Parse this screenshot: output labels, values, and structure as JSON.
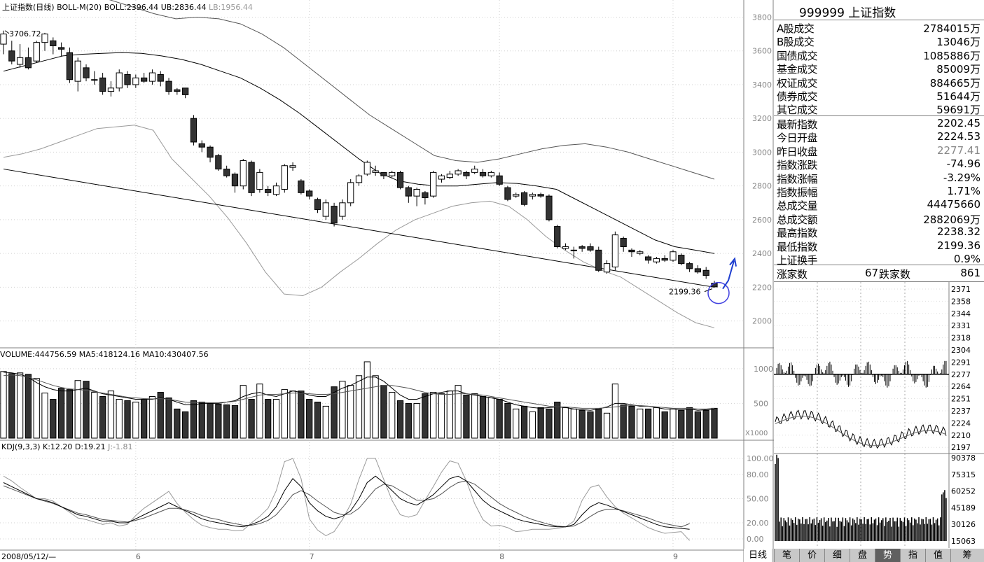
{
  "chart_data": {
    "type": "candlestick",
    "main": {
      "header": {
        "name": "上证指数(日线)",
        "boll_label": "BOLL-M(20)",
        "boll": "BOLL:2396.44",
        "ub": "UB:2836.44",
        "lb": "LB:1956.44"
      },
      "y_ticks": [
        "3800",
        "3600",
        "3400",
        "3200",
        "3000",
        "2800",
        "2600",
        "2400",
        "2200",
        "2000"
      ],
      "y_values": [
        3800,
        3600,
        3400,
        3200,
        3000,
        2800,
        2600,
        2400,
        2200,
        2000
      ],
      "ylim": [
        1870,
        3860
      ],
      "high_label": "3706.72",
      "low_label": "2199.36",
      "candles": [
        [
          3640,
          3700,
          3720,
          3580
        ],
        [
          3600,
          3540,
          3660,
          3520
        ],
        [
          3520,
          3560,
          3640,
          3500
        ],
        [
          3560,
          3500,
          3620,
          3490
        ],
        [
          3540,
          3650,
          3660,
          3530
        ],
        [
          3650,
          3700,
          3707,
          3600
        ],
        [
          3660,
          3630,
          3680,
          3580
        ],
        [
          3620,
          3610,
          3650,
          3570
        ],
        [
          3590,
          3430,
          3620,
          3410
        ],
        [
          3420,
          3540,
          3560,
          3360
        ],
        [
          3500,
          3440,
          3520,
          3420
        ],
        [
          3430,
          3430,
          3480,
          3400
        ],
        [
          3440,
          3360,
          3470,
          3340
        ],
        [
          3360,
          3380,
          3420,
          3330
        ],
        [
          3380,
          3470,
          3490,
          3360
        ],
        [
          3460,
          3400,
          3480,
          3380
        ],
        [
          3400,
          3440,
          3460,
          3380
        ],
        [
          3440,
          3420,
          3470,
          3410
        ],
        [
          3420,
          3470,
          3490,
          3400
        ],
        [
          3460,
          3420,
          3480,
          3390
        ],
        [
          3420,
          3360,
          3440,
          3340
        ],
        [
          3370,
          3360,
          3380,
          3340
        ],
        [
          3380,
          3340,
          3370,
          3320
        ],
        [
          3200,
          3060,
          3220,
          3040
        ],
        [
          3050,
          3030,
          3070,
          3000
        ],
        [
          3030,
          2970,
          3040,
          2940
        ],
        [
          2980,
          2900,
          2990,
          2890
        ],
        [
          2900,
          2860,
          2920,
          2850
        ],
        [
          2870,
          2800,
          2880,
          2760
        ],
        [
          2800,
          2950,
          2960,
          2780
        ],
        [
          2940,
          2760,
          2950,
          2740
        ],
        [
          2780,
          2880,
          2900,
          2760
        ],
        [
          2780,
          2760,
          2800,
          2740
        ],
        [
          2750,
          2800,
          2820,
          2740
        ],
        [
          2780,
          2920,
          2930,
          2760
        ],
        [
          2910,
          2920,
          2940,
          2890
        ],
        [
          2830,
          2760,
          2840,
          2750
        ],
        [
          2770,
          2740,
          2780,
          2720
        ],
        [
          2720,
          2660,
          2730,
          2640
        ],
        [
          2620,
          2700,
          2720,
          2600
        ],
        [
          2680,
          2580,
          2700,
          2560
        ],
        [
          2620,
          2700,
          2720,
          2600
        ],
        [
          2700,
          2820,
          2840,
          2680
        ],
        [
          2820,
          2860,
          2870,
          2800
        ],
        [
          2870,
          2940,
          2950,
          2860
        ],
        [
          2880,
          2890,
          2920,
          2860
        ],
        [
          2880,
          2860,
          2880,
          2840
        ],
        [
          2860,
          2880,
          2890,
          2850
        ],
        [
          2880,
          2790,
          2890,
          2780
        ],
        [
          2790,
          2740,
          2800,
          2700
        ],
        [
          2740,
          2780,
          2790,
          2680
        ],
        [
          2760,
          2730,
          2770,
          2690
        ],
        [
          2740,
          2880,
          2890,
          2730
        ],
        [
          2840,
          2860,
          2870,
          2820
        ],
        [
          2850,
          2870,
          2890,
          2840
        ],
        [
          2870,
          2890,
          2900,
          2860
        ],
        [
          2880,
          2860,
          2890,
          2840
        ],
        [
          2880,
          2900,
          2920,
          2870
        ],
        [
          2880,
          2860,
          2900,
          2850
        ],
        [
          2860,
          2880,
          2890,
          2850
        ],
        [
          2860,
          2810,
          2880,
          2800
        ],
        [
          2790,
          2720,
          2800,
          2710
        ],
        [
          2740,
          2750,
          2760,
          2730
        ],
        [
          2760,
          2690,
          2770,
          2680
        ],
        [
          2740,
          2750,
          2760,
          2720
        ],
        [
          2750,
          2740,
          2760,
          2730
        ],
        [
          2740,
          2600,
          2750,
          2590
        ],
        [
          2560,
          2440,
          2570,
          2430
        ],
        [
          2430,
          2440,
          2460,
          2420
        ],
        [
          2420,
          2420,
          2440,
          2370
        ],
        [
          2440,
          2430,
          2450,
          2410
        ],
        [
          2440,
          2420,
          2460,
          2410
        ],
        [
          2420,
          2300,
          2440,
          2290
        ],
        [
          2290,
          2340,
          2360,
          2280
        ],
        [
          2320,
          2510,
          2530,
          2300
        ],
        [
          2490,
          2440,
          2500,
          2410
        ],
        [
          2420,
          2410,
          2430,
          2380
        ],
        [
          2400,
          2410,
          2420,
          2390
        ],
        [
          2380,
          2360,
          2390,
          2340
        ],
        [
          2350,
          2370,
          2380,
          2340
        ],
        [
          2370,
          2360,
          2390,
          2350
        ],
        [
          2360,
          2410,
          2420,
          2350
        ],
        [
          2390,
          2340,
          2400,
          2330
        ],
        [
          2340,
          2310,
          2350,
          2290
        ],
        [
          2310,
          2290,
          2330,
          2280
        ],
        [
          2300,
          2270,
          2320,
          2250
        ],
        [
          2224,
          2202,
          2238,
          2199
        ]
      ],
      "mid": [
        3480,
        3510,
        3540,
        3570,
        3580,
        3585,
        3590,
        3585,
        3570,
        3550,
        3520,
        3480,
        3440,
        3380,
        3310,
        3230,
        3140,
        3050,
        2960,
        2880,
        2830,
        2810,
        2800,
        2800,
        2810,
        2820,
        2815,
        2800,
        2780,
        2720,
        2660,
        2600,
        2540,
        2480,
        2440,
        2420,
        2400
      ],
      "ub": [
        2970,
        3000,
        3060,
        3120,
        3140,
        3145,
        3150,
        3150,
        3100,
        3000,
        2900,
        2800,
        2700,
        2600,
        2500,
        2400,
        2300,
        2200,
        2100,
        2020,
        1960
      ],
      "ub_hi": [
        3940,
        3950,
        3960,
        3950,
        3940,
        3900,
        3860,
        3820,
        3790,
        3800,
        3790,
        3760,
        3700,
        3620,
        3520,
        3420,
        3320,
        3220,
        3140,
        3060,
        2980,
        2950,
        2940,
        2960,
        2990,
        3020,
        3040,
        3050,
        3030,
        3000,
        2960,
        2920,
        2880,
        2840
      ],
      "lb": [
        2970,
        2990,
        3020,
        3060,
        3100,
        3140,
        3150,
        3160,
        3130,
        2960,
        2850,
        2740,
        2610,
        2460,
        2290,
        2160,
        2150,
        2200,
        2290,
        2370,
        2460,
        2540,
        2600,
        2640,
        2680,
        2700,
        2710,
        2680,
        2600,
        2500,
        2420,
        2350,
        2300,
        2260,
        2190,
        2120,
        2050,
        1990,
        1960
      ],
      "trendline": [
        [
          0,
          2900
        ],
        [
          86,
          2200
        ]
      ]
    },
    "volume": {
      "header": "VOLUME:444756.59 MA5:418124.16 MA10:430407.56",
      "y_ticks": [
        "1000",
        "500"
      ],
      "unit_label": "X1000",
      "values": [
        960,
        930,
        940,
        920,
        860,
        650,
        560,
        720,
        700,
        830,
        820,
        660,
        600,
        680,
        560,
        540,
        520,
        560,
        600,
        660,
        580,
        420,
        380,
        540,
        520,
        500,
        490,
        480,
        470,
        760,
        560,
        780,
        560,
        560,
        700,
        680,
        680,
        560,
        520,
        460,
        740,
        820,
        760,
        900,
        1100,
        900,
        760,
        660,
        540,
        500,
        500,
        640,
        660,
        640,
        680,
        760,
        620,
        640,
        600,
        580,
        560,
        500,
        420,
        460,
        380,
        440,
        420,
        520,
        440,
        420,
        400,
        380,
        420,
        360,
        780,
        480,
        460,
        420,
        420,
        440,
        380,
        420,
        400,
        440,
        380,
        400,
        430
      ],
      "ma5": [
        950,
        940,
        920,
        880,
        800,
        740,
        700,
        680,
        680,
        700,
        720,
        680,
        640,
        620,
        600,
        580,
        560,
        560,
        560,
        580,
        560,
        520,
        480,
        480,
        500,
        500,
        500,
        520,
        540,
        600,
        640,
        660,
        620,
        600,
        640,
        680,
        660,
        620,
        600,
        600,
        660,
        720,
        760,
        820,
        880,
        880,
        820,
        720,
        620,
        560,
        560,
        600,
        640,
        660,
        680,
        680,
        640,
        620,
        600,
        580,
        560,
        520,
        480,
        460,
        440,
        430,
        440,
        450,
        440,
        420,
        410,
        400,
        420,
        450,
        500,
        500,
        480,
        460,
        460,
        440,
        420,
        420,
        410,
        420,
        400,
        410,
        418
      ],
      "ma10": [
        900,
        910,
        900,
        880,
        840,
        800,
        760,
        730,
        710,
        700,
        690,
        670,
        650,
        630,
        610,
        590,
        580,
        570,
        565,
        570,
        560,
        540,
        520,
        510,
        510,
        510,
        510,
        520,
        530,
        560,
        590,
        620,
        630,
        630,
        640,
        650,
        650,
        640,
        630,
        630,
        640,
        660,
        680,
        700,
        720,
        740,
        760,
        760,
        740,
        720,
        690,
        660,
        640,
        630,
        630,
        640,
        640,
        630,
        620,
        600,
        580,
        560,
        540,
        520,
        500,
        480,
        460,
        450,
        450,
        440,
        430,
        430,
        430,
        440,
        450,
        460,
        470,
        470,
        460,
        450,
        440,
        430,
        430,
        430,
        420,
        420,
        430
      ]
    },
    "kdj": {
      "header": {
        "name": "KDJ(9,3,3)",
        "k": "K:12.20",
        "d": "D:19.21",
        "j": "J:-1.81"
      },
      "y_ticks": [
        "100.00",
        "80.00",
        "50.00",
        "20.00",
        "0.00"
      ],
      "y_values": [
        100,
        80,
        50,
        20,
        0
      ],
      "k": [
        70,
        65,
        60,
        55,
        50,
        48,
        45,
        40,
        35,
        30,
        28,
        25,
        22,
        22,
        20,
        20,
        25,
        30,
        35,
        40,
        45,
        40,
        35,
        30,
        25,
        22,
        20,
        18,
        16,
        15,
        18,
        22,
        28,
        40,
        60,
        75,
        65,
        45,
        35,
        28,
        25,
        28,
        35,
        50,
        70,
        78,
        70,
        60,
        50,
        45,
        42,
        48,
        55,
        65,
        75,
        78,
        72,
        60,
        48,
        40,
        35,
        30,
        25,
        22,
        20,
        18,
        16,
        15,
        15,
        18,
        30,
        40,
        45,
        42,
        38,
        34,
        30,
        26,
        22,
        18,
        15,
        14,
        13,
        12
      ],
      "d": [
        66,
        62,
        58,
        54,
        50,
        47,
        44,
        40,
        36,
        32,
        30,
        27,
        24,
        23,
        22,
        21,
        23,
        26,
        30,
        34,
        38,
        38,
        36,
        33,
        29,
        26,
        24,
        21,
        19,
        17,
        17,
        19,
        23,
        30,
        42,
        55,
        60,
        55,
        47,
        40,
        33,
        30,
        31,
        38,
        50,
        62,
        68,
        66,
        60,
        54,
        48,
        48,
        50,
        56,
        64,
        70,
        72,
        68,
        60,
        52,
        44,
        38,
        33,
        28,
        24,
        21,
        18,
        16,
        15,
        16,
        21,
        28,
        34,
        37,
        37,
        35,
        32,
        29,
        26,
        22,
        19,
        17,
        15,
        19
      ],
      "j": [
        78,
        72,
        64,
        57,
        50,
        50,
        47,
        40,
        33,
        26,
        24,
        21,
        18,
        20,
        16,
        18,
        29,
        38,
        45,
        52,
        59,
        44,
        33,
        24,
        17,
        14,
        12,
        12,
        10,
        11,
        20,
        28,
        38,
        60,
        96,
        100,
        75,
        25,
        11,
        4,
        9,
        24,
        43,
        74,
        100,
        100,
        74,
        48,
        30,
        27,
        30,
        48,
        65,
        83,
        97,
        94,
        72,
        44,
        24,
        16,
        17,
        14,
        9,
        10,
        12,
        12,
        12,
        13,
        15,
        22,
        48,
        64,
        67,
        52,
        40,
        32,
        26,
        20,
        14,
        10,
        7,
        8,
        9,
        -2
      ]
    },
    "x_ticks": [
      {
        "label": "2008/05/12/—",
        "idx": 0
      },
      {
        "label": "6",
        "idx": 16
      },
      {
        "label": "7",
        "idx": 37
      },
      {
        "label": "8",
        "idx": 60
      },
      {
        "label": "9",
        "idx": 81
      }
    ],
    "annotation_colors": {
      "circle": "#4040e0",
      "arrow": "#2040d0"
    }
  },
  "panel": {
    "title": "999999 上证指数",
    "turnover": [
      {
        "label": "A股成交",
        "value": "2784015万"
      },
      {
        "label": "B股成交",
        "value": "13046万"
      },
      {
        "label": "国债成交",
        "value": "1085886万"
      },
      {
        "label": "基金成交",
        "value": "85009万"
      },
      {
        "label": "权证成交",
        "value": "884665万"
      },
      {
        "label": "债券成交",
        "value": "51644万"
      },
      {
        "label": "其它成交",
        "value": "59691万"
      }
    ],
    "quote": [
      {
        "label": "最新指数",
        "value": "2202.45"
      },
      {
        "label": "今日开盘",
        "value": "2224.53"
      },
      {
        "label": "昨日收盘",
        "value": "2277.41"
      },
      {
        "label": "指数涨跌",
        "value": "-74.96"
      },
      {
        "label": "指数涨幅",
        "value": "-3.29%"
      },
      {
        "label": "指数振幅",
        "value": "1.71%"
      },
      {
        "label": "总成交量",
        "value": "44475660"
      },
      {
        "label": "总成交额",
        "value": "2882069万"
      },
      {
        "label": "最高指数",
        "value": "2238.32"
      },
      {
        "label": "最低指数",
        "value": "2199.36"
      },
      {
        "label": "上证换手",
        "value": "0.9%"
      }
    ],
    "updown": {
      "up_label": "涨家数",
      "up_value": "67",
      "down_label": "跌家数",
      "down_value": "861"
    },
    "mini_price_ticks": [
      "2371",
      "2358",
      "2344",
      "2331",
      "2318",
      "2304",
      "2291",
      "2277",
      "2264",
      "2251",
      "2237",
      "2224",
      "2210",
      "2197"
    ],
    "mini_vol_ticks": [
      "90378",
      "75315",
      "60252",
      "45189",
      "30126",
      "15063"
    ],
    "tabs": [
      "日线",
      "笔",
      "价",
      "细",
      "盘",
      "势",
      "指",
      "值",
      "筹"
    ],
    "active_tab": "势"
  }
}
